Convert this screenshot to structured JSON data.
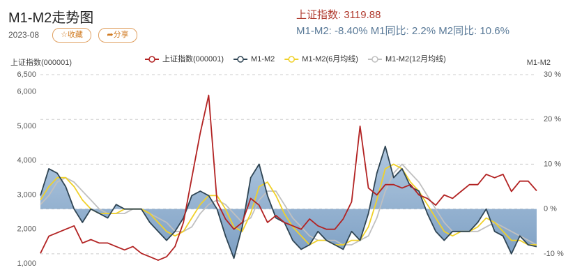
{
  "header": {
    "title": "M1-M2走势图",
    "date": "2023-08",
    "favorite": "☆收藏",
    "share": "➦分享",
    "index_text": "上证指数: 3119.88",
    "m_text": "M1-M2: -8.40% M1同比: 2.2% M2同比: 10.6%"
  },
  "chart_data": {
    "type": "line",
    "y_label": "上证指数(000001)",
    "y2_label": "M1-M2",
    "ylim": [
      1000,
      6500
    ],
    "yticks": [
      {
        "value": 1000,
        "label": "1,000"
      },
      {
        "value": 2000,
        "label": "2,000"
      },
      {
        "value": 3000,
        "label": "3,000"
      },
      {
        "value": 4000,
        "label": "4,000"
      },
      {
        "value": 5000,
        "label": "5,000"
      },
      {
        "value": 6000,
        "label": "6,000"
      },
      {
        "value": 6500,
        "label": "6,500"
      }
    ],
    "y2lim": [
      -12.2,
      30
    ],
    "y2ticks": [
      {
        "value": -10,
        "label": "-10 %"
      },
      {
        "value": 0,
        "label": "0 %"
      },
      {
        "value": 10,
        "label": "10 %"
      },
      {
        "value": 20,
        "label": "20 %"
      },
      {
        "value": 30,
        "label": "30 %"
      }
    ],
    "grid": true,
    "series": [
      {
        "name": "上证指数(000001)",
        "color": "#b22222",
        "values": [
          1300,
          1800,
          1900,
          2000,
          2100,
          1600,
          1700,
          1600,
          1600,
          1500,
          1400,
          1500,
          1300,
          1200,
          1100,
          1200,
          1500,
          2200,
          3500,
          4800,
          5900,
          2800,
          2300,
          2000,
          2200,
          2900,
          2700,
          2200,
          2400,
          2200,
          2100,
          2000,
          2300,
          2100,
          2000,
          2000,
          2300,
          2800,
          5000,
          3200,
          3000,
          3300,
          3300,
          3200,
          3300,
          3000,
          2900,
          2700,
          3000,
          2900,
          3100,
          3300,
          3300,
          3600,
          3500,
          3600,
          3100,
          3400,
          3400,
          3120
        ]
      },
      {
        "name": "M1-M2",
        "color": "#2f4554",
        "axis": "y2",
        "area_color": "url(#areaGrad)",
        "values": [
          3,
          9,
          8,
          5,
          0,
          -3,
          0,
          -1,
          -2,
          1,
          0,
          0,
          0,
          -3,
          -5,
          -7,
          -5,
          -2,
          3,
          4,
          3,
          0,
          -6,
          -11,
          -4,
          7,
          10,
          3,
          -2,
          -3,
          -7,
          -9,
          -8,
          -5,
          -7,
          -8,
          -9,
          -5,
          -7,
          -1,
          8,
          14,
          7,
          9,
          5,
          4,
          -1,
          -5,
          -7,
          -5,
          -5,
          -5,
          -3,
          0,
          -5,
          -6,
          -10,
          -6,
          -8,
          -8.4
        ]
      },
      {
        "name": "M1-M2(6月均线)",
        "color": "#f0d12a",
        "axis": "y2",
        "values": [
          2,
          5,
          7,
          7,
          5,
          2,
          0,
          -1,
          -1,
          -1,
          0,
          0,
          0,
          -1,
          -3,
          -5,
          -6,
          -5,
          -2,
          1,
          3,
          3,
          0,
          -4,
          -5,
          -1,
          5,
          6,
          3,
          -1,
          -4,
          -6,
          -8,
          -7,
          -7,
          -8,
          -8,
          -7,
          -7,
          -4,
          2,
          9,
          10,
          9,
          6,
          4,
          1,
          -2,
          -5,
          -6,
          -5,
          -5,
          -4,
          -2,
          -3,
          -5,
          -7,
          -7,
          -8,
          -8
        ]
      },
      {
        "name": "M1-M2(12月均线)",
        "color": "#c0c0c0",
        "axis": "y2",
        "values": [
          1,
          3,
          6,
          7,
          6,
          4,
          2,
          0,
          -1,
          -1,
          -1,
          0,
          0,
          -1,
          -2,
          -3,
          -5,
          -5,
          -4,
          -1,
          1,
          2,
          1,
          -1,
          -3,
          -2,
          2,
          4,
          4,
          1,
          -2,
          -4,
          -6,
          -7,
          -7,
          -7,
          -8,
          -8,
          -7,
          -6,
          -2,
          4,
          8,
          10,
          8,
          6,
          3,
          0,
          -3,
          -5,
          -5,
          -5,
          -5,
          -4,
          -3,
          -4,
          -5,
          -6,
          -7,
          -8
        ]
      }
    ]
  }
}
